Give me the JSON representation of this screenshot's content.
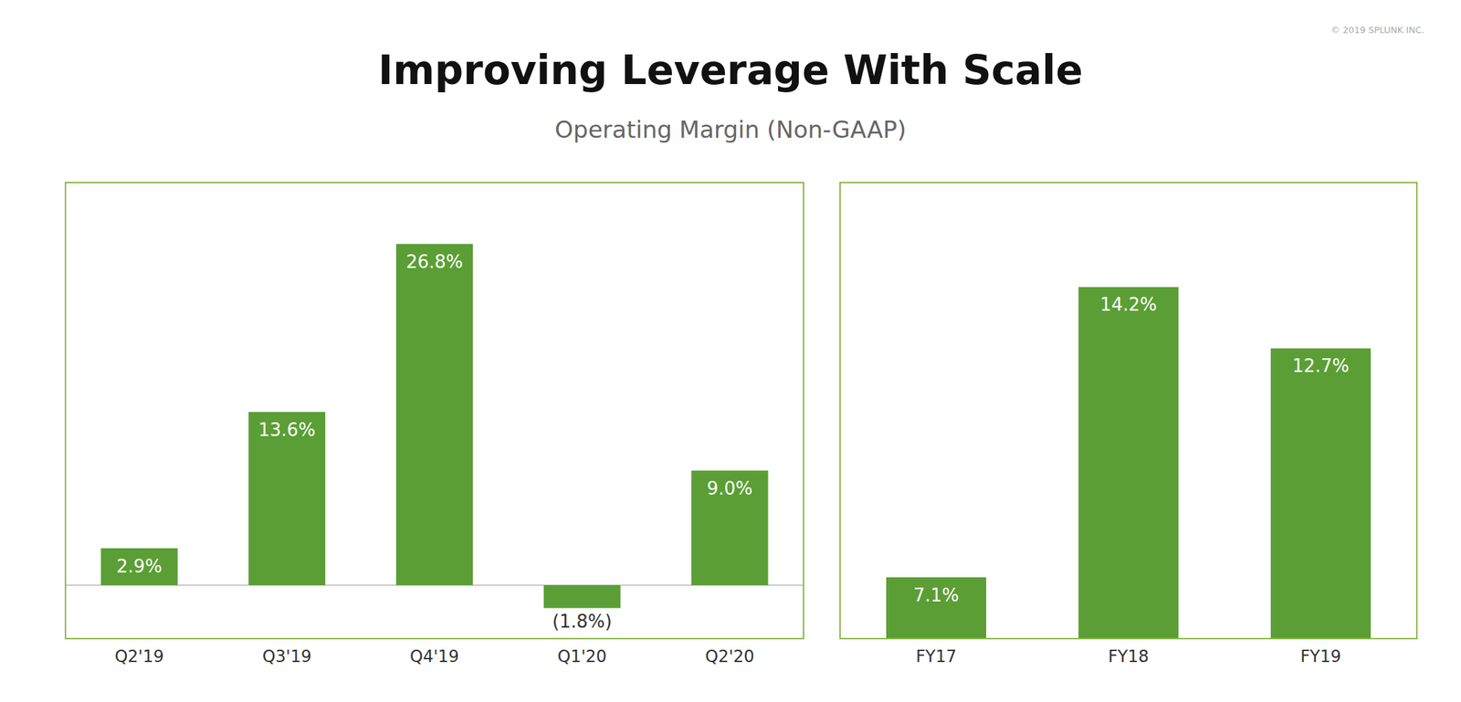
{
  "chart_data": [
    {
      "type": "bar",
      "title": "Improving Leverage With Scale",
      "subtitle": "Operating Margin (Non-GAAP)",
      "annotations": [
        "© 2019 SPLUNK INC."
      ],
      "categories": [
        "Q2'19",
        "Q3'19",
        "Q4'19",
        "Q1'20",
        "Q2'20"
      ],
      "values": [
        2.9,
        13.6,
        26.8,
        -1.8,
        9.0
      ],
      "value_labels": [
        "2.9%",
        "13.6%",
        "26.8%",
        "(1.8%)",
        "9.0%"
      ],
      "color": "#5b9e35",
      "ylim": [
        -4.2,
        31.624
      ],
      "yticks": [],
      "grid": false,
      "data_labels": true,
      "tick_labels": "x"
    },
    {
      "type": "bar",
      "categories": [
        "FY17",
        "FY18",
        "FY19"
      ],
      "values": [
        7.1,
        14.2,
        12.7
      ],
      "value_labels": [
        "7.1%",
        "14.2%",
        "12.7%"
      ],
      "color": "#5b9e35",
      "ylim": [
        5.6,
        16.756
      ],
      "yticks": [],
      "grid": false,
      "data_labels": true,
      "tick_labels": "x"
    }
  ]
}
